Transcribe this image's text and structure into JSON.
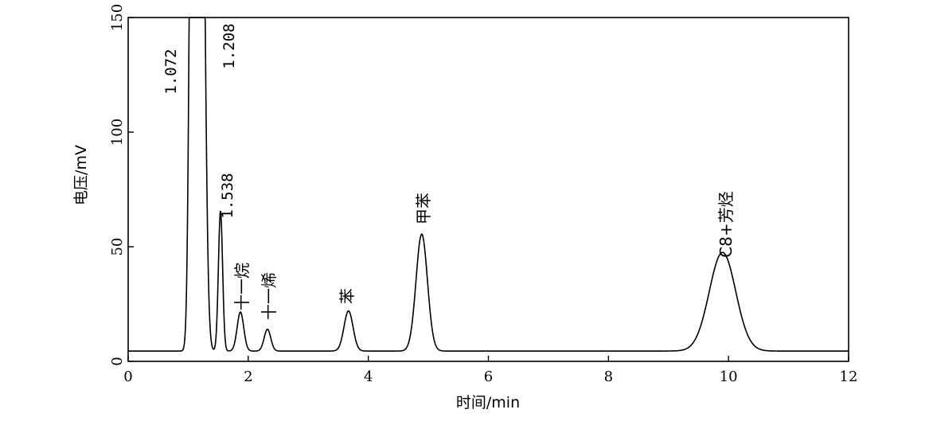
{
  "chart_data": {
    "type": "line",
    "xlabel": "时间/min",
    "ylabel": "电压/mV",
    "xlim": [
      0,
      12
    ],
    "ylim": [
      0,
      150
    ],
    "x_ticks": [
      "0",
      "2",
      "4",
      "6",
      "8",
      "10",
      "12"
    ],
    "y_ticks": [
      "0",
      "50",
      "100",
      "150"
    ],
    "baseline_mV": 4.5,
    "grid": false,
    "legend": "none",
    "peaks": [
      {
        "time": 1.072,
        "height_mV": 320,
        "label": "1.072"
      },
      {
        "time": 1.208,
        "height_mV": 320,
        "label": "1.208"
      },
      {
        "time": 1.538,
        "height_mV": 61,
        "label": "1.538"
      },
      {
        "time": 1.87,
        "height_mV": 17,
        "label": "十一烷"
      },
      {
        "time": 2.32,
        "height_mV": 9.5,
        "label": "十一烯"
      },
      {
        "time": 3.67,
        "height_mV": 17.5,
        "label": "苯"
      },
      {
        "time": 4.89,
        "height_mV": 51,
        "label": "甲苯"
      },
      {
        "time": 9.9,
        "height_mV": 43,
        "label": "C8+芳烃"
      }
    ]
  }
}
